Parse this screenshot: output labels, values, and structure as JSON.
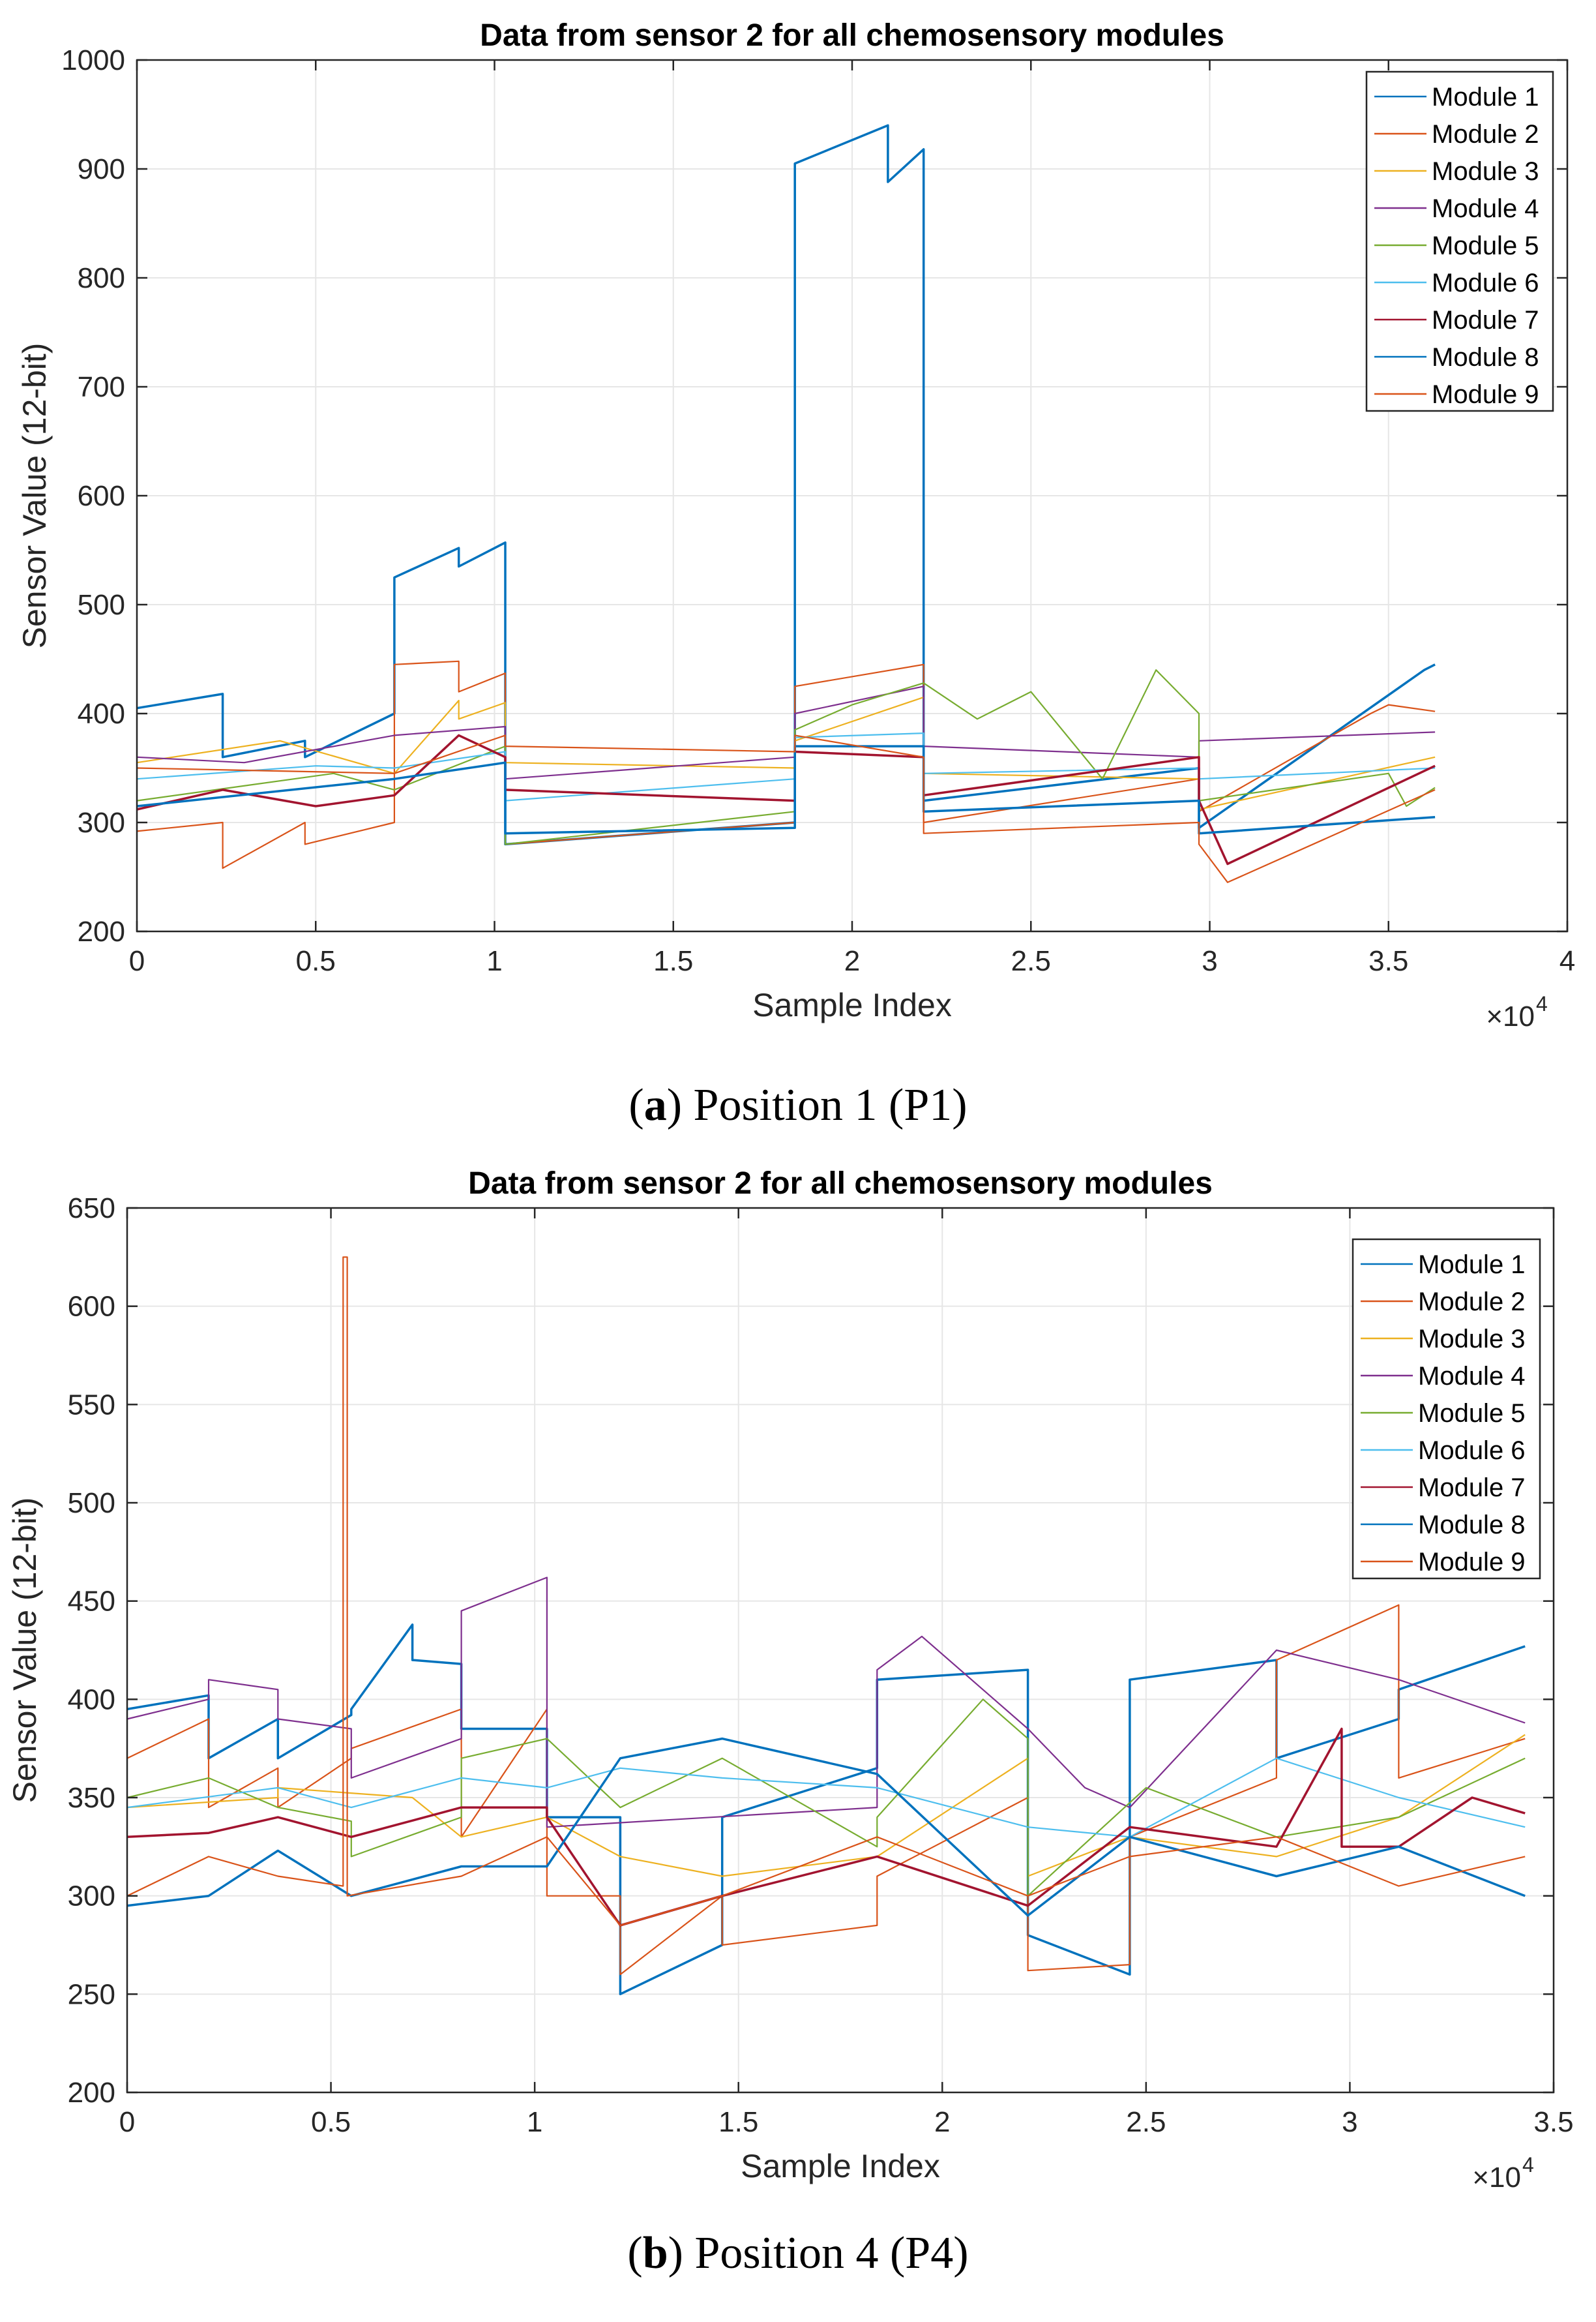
{
  "colors": {
    "Module 1": "#0072BD",
    "Module 2": "#D95319",
    "Module 3": "#EDB120",
    "Module 4": "#7E2F8E",
    "Module 5": "#77AC30",
    "Module 6": "#4DBEEE",
    "Module 7": "#A2142F",
    "Module 8": "#0072BD",
    "Module 9": "#D95319"
  },
  "captions": [
    {
      "letter": "a",
      "text": ") Position 1 (P1)",
      "open": "("
    },
    {
      "letter": "b",
      "text": ") Position 4 (P4)",
      "open": "("
    }
  ],
  "chart_data": [
    {
      "type": "line",
      "title": "Data from sensor 2 for all chemosensory modules",
      "xlabel": "Sample Index",
      "ylabel": "Sensor Value (12-bit)",
      "x_exponent": "×10",
      "x_exponent_power": "4",
      "xlim": [
        0,
        4
      ],
      "ylim": [
        200,
        1000
      ],
      "xticks": [
        0,
        0.5,
        1,
        1.5,
        2,
        2.5,
        3,
        3.5,
        4
      ],
      "xtick_labels": [
        "0",
        "0.5",
        "1",
        "1.5",
        "2",
        "2.5",
        "3",
        "3.5",
        "4"
      ],
      "yticks": [
        200,
        300,
        400,
        500,
        600,
        700,
        800,
        900,
        1000
      ],
      "ytick_labels": [
        "200",
        "300",
        "400",
        "500",
        "600",
        "700",
        "800",
        "900",
        "1000"
      ],
      "grid": true,
      "legend_position": "top-right",
      "legend": [
        "Module 1",
        "Module 2",
        "Module 3",
        "Module 4",
        "Module 5",
        "Module 6",
        "Module 7",
        "Module 8",
        "Module 9"
      ],
      "series": [
        {
          "name": "Module 1",
          "x": [
            0,
            0.24,
            0.24,
            0.47,
            0.47,
            0.72,
            0.72,
            0.9,
            0.9,
            1.03,
            1.03,
            1.84,
            1.84,
            2.1,
            2.1,
            2.2,
            2.2,
            2.97,
            2.97,
            3.6,
            3.63
          ],
          "y": [
            405,
            418,
            360,
            375,
            360,
            400,
            525,
            552,
            535,
            557,
            280,
            300,
            905,
            940,
            888,
            918,
            320,
            350,
            295,
            440,
            445
          ]
        },
        {
          "name": "Module 2",
          "x": [
            0,
            0.24,
            0.24,
            0.47,
            0.47,
            0.72,
            0.72,
            0.9,
            0.9,
            1.03,
            1.03,
            1.84,
            1.84,
            2.2,
            2.2,
            2.97,
            2.97,
            3.45,
            3.5,
            3.63
          ],
          "y": [
            292,
            300,
            258,
            300,
            280,
            300,
            445,
            448,
            420,
            437,
            280,
            300,
            425,
            445,
            300,
            340,
            310,
            400,
            408,
            402
          ]
        },
        {
          "name": "Module 3",
          "x": [
            0,
            0.4,
            0.72,
            0.9,
            0.9,
            1.03,
            1.03,
            1.84,
            1.84,
            2.2,
            2.2,
            2.97,
            2.97,
            3.63
          ],
          "y": [
            355,
            375,
            345,
            412,
            395,
            410,
            355,
            350,
            375,
            415,
            345,
            340,
            312,
            360
          ]
        },
        {
          "name": "Module 4",
          "x": [
            0,
            0.3,
            0.72,
            1.03,
            1.03,
            1.84,
            1.84,
            2.2,
            2.2,
            2.97,
            2.97,
            3.63
          ],
          "y": [
            360,
            355,
            380,
            388,
            340,
            360,
            400,
            425,
            370,
            360,
            375,
            383
          ]
        },
        {
          "name": "Module 5",
          "x": [
            0,
            0.55,
            0.72,
            1.03,
            1.03,
            1.84,
            1.84,
            2.0,
            2.2,
            2.35,
            2.5,
            2.7,
            2.85,
            2.97,
            2.97,
            3.5,
            3.55,
            3.63
          ],
          "y": [
            320,
            345,
            330,
            370,
            280,
            310,
            385,
            408,
            428,
            395,
            420,
            340,
            440,
            400,
            320,
            345,
            315,
            332
          ]
        },
        {
          "name": "Module 6",
          "x": [
            0,
            0.5,
            0.72,
            1.03,
            1.03,
            1.84,
            1.84,
            2.2,
            2.2,
            2.97,
            2.97,
            3.63
          ],
          "y": [
            340,
            352,
            350,
            365,
            320,
            340,
            378,
            382,
            345,
            350,
            340,
            350
          ]
        },
        {
          "name": "Module 7",
          "x": [
            0,
            0.24,
            0.5,
            0.72,
            0.9,
            1.03,
            1.03,
            1.84,
            1.84,
            2.2,
            2.2,
            2.97,
            2.97,
            3.05,
            3.63
          ],
          "y": [
            312,
            330,
            315,
            325,
            380,
            360,
            330,
            320,
            365,
            360,
            325,
            360,
            320,
            262,
            352
          ]
        },
        {
          "name": "Module 8",
          "x": [
            0,
            0.72,
            1.03,
            1.03,
            1.84,
            1.84,
            2.2,
            2.2,
            2.97,
            2.97,
            3.63
          ],
          "y": [
            315,
            340,
            355,
            290,
            295,
            370,
            370,
            310,
            320,
            290,
            305
          ]
        },
        {
          "name": "Module 9",
          "x": [
            0,
            0.72,
            1.03,
            1.03,
            1.84,
            1.84,
            2.2,
            2.2,
            2.97,
            2.97,
            3.05,
            3.63
          ],
          "y": [
            350,
            345,
            380,
            370,
            365,
            380,
            360,
            290,
            300,
            280,
            245,
            330
          ]
        }
      ]
    },
    {
      "type": "line",
      "title": "Data from sensor 2 for all chemosensory modules",
      "xlabel": "Sample Index",
      "ylabel": "Sensor Value (12-bit)",
      "x_exponent": "×10",
      "x_exponent_power": "4",
      "xlim": [
        0,
        3.5
      ],
      "ylim": [
        200,
        650
      ],
      "xticks": [
        0,
        0.5,
        1,
        1.5,
        2,
        2.5,
        3,
        3.5
      ],
      "xtick_labels": [
        "0",
        "0.5",
        "1",
        "1.5",
        "2",
        "2.5",
        "3",
        "3.5"
      ],
      "yticks": [
        200,
        250,
        300,
        350,
        400,
        450,
        500,
        550,
        600,
        650
      ],
      "ytick_labels": [
        "200",
        "250",
        "300",
        "350",
        "400",
        "450",
        "500",
        "550",
        "600",
        "650"
      ],
      "grid": true,
      "legend_position": "top-right",
      "legend": [
        "Module 1",
        "Module 2",
        "Module 3",
        "Module 4",
        "Module 5",
        "Module 6",
        "Module 7",
        "Module 8",
        "Module 9"
      ],
      "series": [
        {
          "name": "Module 1",
          "x": [
            0,
            0.2,
            0.2,
            0.37,
            0.37,
            0.55,
            0.55,
            0.7,
            0.7,
            0.82,
            0.82,
            1.03,
            1.03,
            1.21,
            1.21,
            1.46,
            1.46,
            1.84,
            1.84,
            2.21,
            2.21,
            2.46,
            2.46,
            2.82,
            2.82,
            3.12,
            3.12,
            3.43
          ],
          "y": [
            395,
            402,
            370,
            390,
            370,
            392,
            395,
            438,
            420,
            418,
            385,
            385,
            340,
            340,
            250,
            275,
            340,
            365,
            410,
            415,
            280,
            260,
            410,
            420,
            370,
            390,
            405,
            427
          ]
        },
        {
          "name": "Module 2",
          "x": [
            0,
            0.2,
            0.2,
            0.37,
            0.37,
            0.55,
            0.55,
            0.82,
            0.82,
            1.03,
            1.03,
            1.21,
            1.21,
            1.46,
            1.46,
            1.84,
            1.84,
            2.21,
            2.21,
            2.46,
            2.46,
            2.82,
            2.82,
            3.12,
            3.12,
            3.43
          ],
          "y": [
            370,
            390,
            345,
            365,
            345,
            370,
            375,
            395,
            330,
            395,
            300,
            300,
            260,
            300,
            275,
            285,
            310,
            350,
            262,
            265,
            330,
            360,
            420,
            448,
            360,
            380
          ]
        },
        {
          "name": "Module 3",
          "x": [
            0,
            0.37,
            0.37,
            0.7,
            0.82,
            1.03,
            1.21,
            1.46,
            1.84,
            2.21,
            2.21,
            2.46,
            2.82,
            3.12,
            3.43
          ],
          "y": [
            345,
            350,
            355,
            350,
            330,
            340,
            320,
            310,
            320,
            370,
            310,
            330,
            320,
            340,
            382
          ]
        },
        {
          "name": "Module 4",
          "x": [
            0,
            0.2,
            0.2,
            0.37,
            0.37,
            0.55,
            0.55,
            0.82,
            0.82,
            1.03,
            1.03,
            1.84,
            1.84,
            1.95,
            2.21,
            2.35,
            2.46,
            2.82,
            3.12,
            3.43
          ],
          "y": [
            390,
            400,
            410,
            405,
            390,
            385,
            360,
            380,
            445,
            462,
            335,
            345,
            415,
            432,
            385,
            355,
            345,
            425,
            410,
            388
          ]
        },
        {
          "name": "Module 5",
          "x": [
            0,
            0.2,
            0.37,
            0.55,
            0.55,
            0.82,
            0.82,
            1.03,
            1.21,
            1.46,
            1.84,
            1.84,
            2.1,
            2.21,
            2.21,
            2.5,
            2.82,
            3.12,
            3.43
          ],
          "y": [
            350,
            360,
            345,
            338,
            320,
            340,
            370,
            380,
            345,
            370,
            325,
            340,
            400,
            380,
            300,
            355,
            330,
            340,
            370
          ]
        },
        {
          "name": "Module 6",
          "x": [
            0,
            0.37,
            0.55,
            0.82,
            1.03,
            1.21,
            1.46,
            1.84,
            2.21,
            2.46,
            2.82,
            3.12,
            3.43
          ],
          "y": [
            345,
            355,
            345,
            360,
            355,
            365,
            360,
            355,
            335,
            330,
            370,
            350,
            335
          ]
        },
        {
          "name": "Module 7",
          "x": [
            0,
            0.2,
            0.37,
            0.55,
            0.82,
            1.03,
            1.03,
            1.21,
            1.46,
            1.84,
            2.21,
            2.46,
            2.82,
            2.98,
            2.98,
            3.12,
            3.3,
            3.43
          ],
          "y": [
            330,
            332,
            340,
            330,
            345,
            345,
            340,
            285,
            300,
            320,
            295,
            335,
            325,
            385,
            325,
            325,
            350,
            342
          ]
        },
        {
          "name": "Module 8",
          "x": [
            0,
            0.2,
            0.37,
            0.55,
            0.82,
            1.03,
            1.21,
            1.46,
            1.84,
            2.21,
            2.46,
            2.82,
            3.12,
            3.43
          ],
          "y": [
            295,
            300,
            323,
            300,
            315,
            315,
            370,
            380,
            362,
            290,
            330,
            310,
            325,
            300
          ]
        },
        {
          "name": "Module 9",
          "x": [
            0,
            0.2,
            0.37,
            0.53,
            0.53,
            0.54,
            0.54,
            0.82,
            1.03,
            1.21,
            1.46,
            1.84,
            2.21,
            2.46,
            2.82,
            3.12,
            3.43
          ],
          "y": [
            300,
            320,
            310,
            305,
            625,
            625,
            300,
            310,
            330,
            285,
            300,
            330,
            300,
            320,
            330,
            305,
            320
          ]
        }
      ]
    }
  ]
}
